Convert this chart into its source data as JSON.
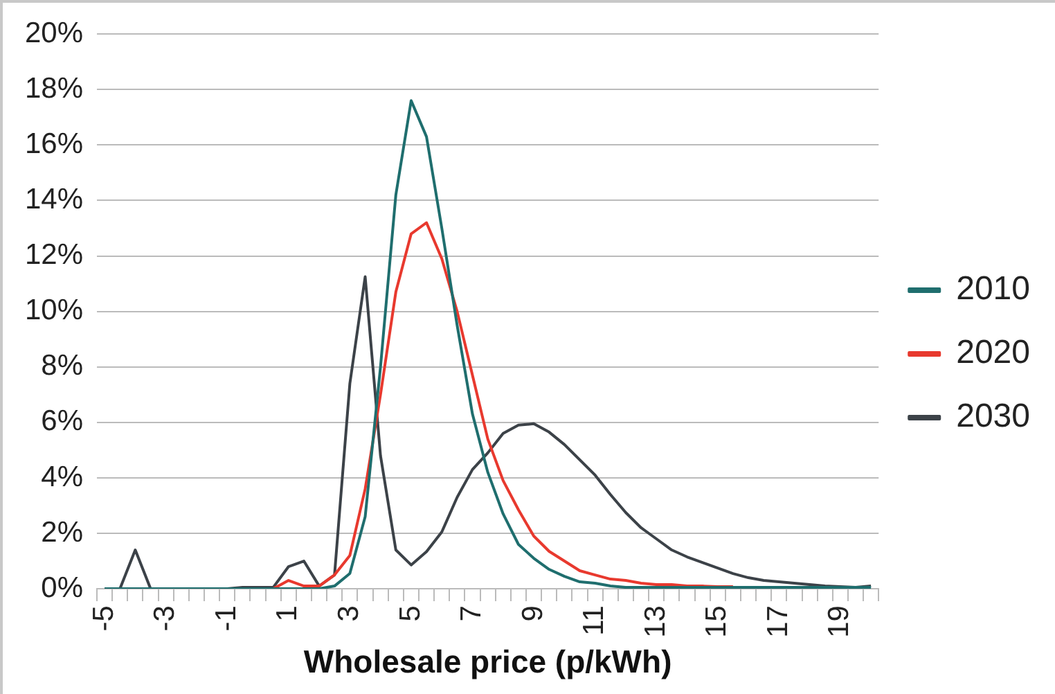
{
  "chart_data": {
    "type": "line",
    "xlabel": "Wholesale price (p/kWh)",
    "categories": [
      "-5",
      null,
      null,
      null,
      "-3",
      null,
      null,
      null,
      "-1",
      null,
      null,
      null,
      "1",
      null,
      null,
      null,
      "3",
      null,
      null,
      null,
      "5",
      null,
      null,
      null,
      "7",
      null,
      null,
      null,
      "9",
      null,
      null,
      null,
      "11",
      null,
      null,
      null,
      "13",
      null,
      null,
      null,
      "15",
      null,
      null,
      null,
      "17",
      null,
      null,
      null,
      "19",
      null,
      null
    ],
    "series": [
      {
        "name": "2010",
        "color": "#1f6e6e",
        "values": [
          0,
          0,
          0,
          0,
          0,
          0,
          0,
          0,
          0,
          0,
          0,
          0,
          0,
          0,
          0,
          0.1,
          0.55,
          2.6,
          8.0,
          14.2,
          17.6,
          16.3,
          13.0,
          9.5,
          6.3,
          4.2,
          2.7,
          1.6,
          1.1,
          0.7,
          0.45,
          0.25,
          0.2,
          0.1,
          0.05,
          0.05,
          0.05,
          0.05,
          0.05,
          0.05,
          0.05,
          0.05,
          0.05,
          0.05,
          0.05,
          0.05,
          0.05,
          0.05,
          0.05,
          0.05,
          0.05
        ]
      },
      {
        "name": "2020",
        "color": "#e8392e",
        "values": [
          null,
          null,
          null,
          null,
          null,
          null,
          null,
          null,
          null,
          null,
          0,
          0,
          0.3,
          0.1,
          0.1,
          0.5,
          1.2,
          3.6,
          7.0,
          10.7,
          12.8,
          13.2,
          11.9,
          10.0,
          7.7,
          5.4,
          3.9,
          2.85,
          1.9,
          1.35,
          1.0,
          0.65,
          0.5,
          0.35,
          0.3,
          0.2,
          0.15,
          0.15,
          0.1,
          0.1,
          0.08,
          0.08,
          null,
          null,
          null,
          null,
          null,
          null,
          null,
          null,
          null
        ]
      },
      {
        "name": "2030",
        "color": "#3c4248",
        "values": [
          0,
          0,
          1.4,
          0,
          0,
          0,
          0,
          0,
          0,
          0.05,
          0.05,
          0.05,
          0.8,
          1.0,
          0.1,
          0.5,
          7.4,
          11.25,
          4.8,
          1.4,
          0.86,
          1.34,
          2.05,
          3.3,
          4.3,
          4.9,
          5.6,
          5.9,
          5.95,
          5.65,
          5.2,
          4.65,
          4.1,
          3.4,
          2.75,
          2.2,
          1.8,
          1.4,
          1.15,
          0.95,
          0.75,
          0.55,
          0.4,
          0.3,
          0.25,
          0.2,
          0.15,
          0.1,
          0.08,
          0.05,
          0.1
        ]
      }
    ],
    "ylim": [
      0,
      20
    ],
    "yticks": [
      {
        "value": 0,
        "label": "0%"
      },
      {
        "value": 2,
        "label": "2%"
      },
      {
        "value": 4,
        "label": "4%"
      },
      {
        "value": 6,
        "label": "6%"
      },
      {
        "value": 8,
        "label": "8%"
      },
      {
        "value": 10,
        "label": "10%"
      },
      {
        "value": 12,
        "label": "12%"
      },
      {
        "value": 14,
        "label": "14%"
      },
      {
        "value": 16,
        "label": "16%"
      },
      {
        "value": 18,
        "label": "18%"
      },
      {
        "value": 20,
        "label": "20%"
      }
    ],
    "grid": "y",
    "legend": "right",
    "marker": "none",
    "line_style": "solid"
  }
}
